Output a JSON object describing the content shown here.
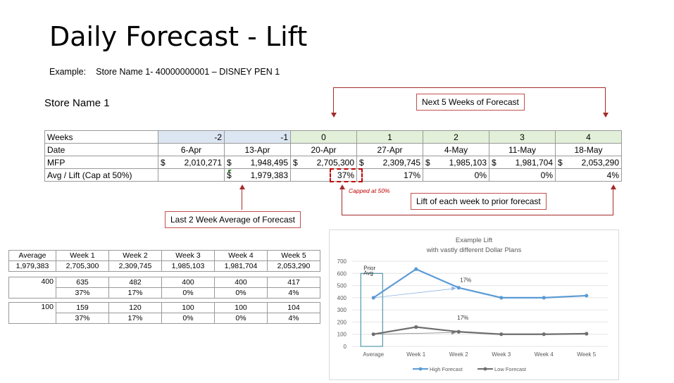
{
  "title": "Daily Forecast - Lift",
  "example": {
    "label": "Example:",
    "text": "Store Name 1- 40000000001 – DISNEY PEN 1"
  },
  "store_heading": "Store Name 1",
  "main_table": {
    "rows": [
      {
        "label": "Weeks",
        "cells": [
          "-2",
          "-1",
          "0",
          "1",
          "2",
          "3",
          "4"
        ]
      },
      {
        "label": "Date",
        "cells": [
          "6-Apr",
          "13-Apr",
          "20-Apr",
          "27-Apr",
          "4-May",
          "11-May",
          "18-May"
        ]
      },
      {
        "label": "MFP",
        "currency": "$",
        "cells": [
          "2,010,271",
          "1,948,495",
          "2,705,300",
          "2,309,745",
          "1,985,103",
          "1,981,704",
          "2,053,290"
        ]
      },
      {
        "label": "Avg / Lift (Cap at 50%)",
        "currency": "$",
        "avg": "1,979,383",
        "cells": [
          "37%",
          "17%",
          "0%",
          "0%",
          "4%"
        ]
      }
    ]
  },
  "callouts": {
    "next_weeks": "Next 5 Weeks of Forecast",
    "capped": "Capped at 50%",
    "lift": "Lift of each week to prior forecast",
    "last_weeks": "Last 2 Week Average of Forecast"
  },
  "small_tables": {
    "headers": [
      "Average",
      "Week 1",
      "Week 2",
      "Week 3",
      "Week 4",
      "Week 5"
    ],
    "summary": [
      "1,979,383",
      "2,705,300",
      "2,309,745",
      "1,985,103",
      "1,981,704",
      "2,053,290"
    ],
    "high": {
      "average": "400",
      "values": [
        "635",
        "482",
        "400",
        "400",
        "417"
      ],
      "lifts": [
        "37%",
        "17%",
        "0%",
        "0%",
        "4%"
      ]
    },
    "low": {
      "average": "100",
      "values": [
        "159",
        "120",
        "100",
        "100",
        "104"
      ],
      "lifts": [
        "37%",
        "17%",
        "0%",
        "0%",
        "4%"
      ]
    }
  },
  "chart_data": {
    "type": "line",
    "title": "Example Lift",
    "subtitle": "with vastly different Dollar Plans",
    "categories": [
      "Average",
      "Week 1",
      "Week 2",
      "Week 3",
      "Week 4",
      "Week 5"
    ],
    "series": [
      {
        "name": "High Forecast",
        "values": [
          400,
          635,
          482,
          400,
          400,
          417
        ],
        "color": "#5b9bd5"
      },
      {
        "name": "Low Forecast",
        "values": [
          100,
          159,
          120,
          100,
          100,
          104
        ],
        "color": "#6e6e6e"
      }
    ],
    "ylim": [
      0,
      700
    ],
    "yticks": [
      0,
      100,
      200,
      300,
      400,
      500,
      600,
      700
    ],
    "grid": true,
    "legend": "bottom",
    "annotations": {
      "prior_avg": "Prior Avg",
      "high_lift": "17%",
      "low_lift": "17%"
    }
  },
  "colors": {
    "callout_border": "#c0504d",
    "accent_red": "#a52a2a",
    "header_blue": "#dce6f2",
    "header_green": "#e2efd9"
  }
}
